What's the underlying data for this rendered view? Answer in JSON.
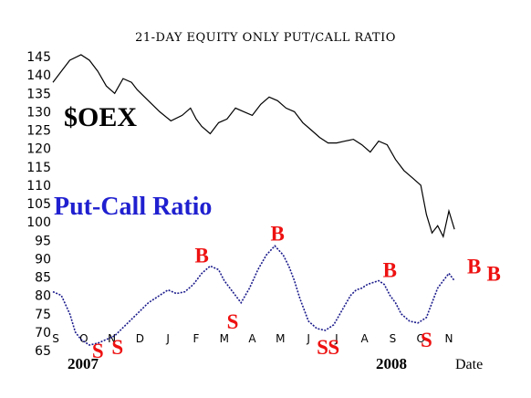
{
  "chart_data": {
    "type": "line",
    "title": "21-DAY EQUITY ONLY PUT/CALL RATIO",
    "xlabel": "Date",
    "y_ticks": [
      145,
      140,
      135,
      130,
      125,
      120,
      115,
      110,
      105,
      100,
      95,
      90,
      85,
      80,
      75,
      70,
      65
    ],
    "ylim": [
      65,
      145
    ],
    "months": [
      "S",
      "O",
      "N",
      "D",
      "J",
      "F",
      "M",
      "A",
      "M",
      "J",
      "J",
      "A",
      "S",
      "O",
      "N"
    ],
    "years": [
      "2007",
      "2008"
    ],
    "series": [
      {
        "name": "$OEX",
        "color": "#000000",
        "x": [
          0.0,
          0.3,
          0.6,
          1.0,
          1.3,
          1.6,
          1.9,
          2.2,
          2.5,
          2.8,
          3.0,
          3.4,
          3.8,
          4.2,
          4.6,
          4.9,
          5.1,
          5.3,
          5.6,
          5.9,
          6.2,
          6.5,
          6.8,
          7.1,
          7.4,
          7.7,
          8.0,
          8.3,
          8.6,
          8.9,
          9.2,
          9.5,
          9.8,
          10.1,
          10.4,
          10.7,
          11.0,
          11.3,
          11.6,
          11.9,
          12.2,
          12.5,
          12.8,
          13.1,
          13.3,
          13.5,
          13.7,
          13.9,
          14.1,
          14.3
        ],
        "values": [
          138,
          141,
          144,
          145.5,
          144,
          141,
          137,
          135,
          139,
          138,
          136,
          133,
          130,
          127.5,
          129,
          131,
          128,
          126,
          124,
          127,
          128,
          131,
          130,
          129,
          132,
          134,
          133,
          131,
          130,
          127,
          125,
          123,
          121.5,
          121.5,
          122,
          122.5,
          121,
          119,
          122,
          121,
          117,
          114,
          112,
          110,
          102,
          97,
          99,
          96,
          103,
          98
        ]
      },
      {
        "name": "Put-Call Ratio",
        "color": "#1a1a8c",
        "x": [
          0.0,
          0.3,
          0.6,
          0.8,
          1.0,
          1.3,
          1.6,
          1.9,
          2.2,
          2.6,
          3.0,
          3.4,
          3.8,
          4.1,
          4.4,
          4.7,
          5.0,
          5.3,
          5.6,
          5.9,
          6.1,
          6.4,
          6.7,
          7.0,
          7.3,
          7.6,
          7.9,
          8.2,
          8.4,
          8.6,
          8.8,
          9.1,
          9.4,
          9.7,
          10.0,
          10.3,
          10.6,
          10.8,
          11.0,
          11.2,
          11.4,
          11.6,
          11.8,
          12.0,
          12.2,
          12.4,
          12.7,
          13.0,
          13.3,
          13.5,
          13.7,
          13.9,
          14.1,
          14.3
        ],
        "values": [
          81,
          80,
          75,
          70,
          68,
          66.5,
          67,
          68,
          69,
          72,
          75,
          78,
          80,
          81.5,
          80.5,
          81,
          83,
          86,
          88,
          87,
          84,
          81,
          78,
          82,
          87,
          91,
          93.5,
          91,
          88,
          84,
          79,
          73,
          71,
          70.5,
          72,
          76,
          80,
          81.5,
          82,
          83,
          83.5,
          84,
          83,
          80,
          78,
          75,
          73,
          72.5,
          74,
          78,
          82,
          84,
          86,
          84
        ]
      }
    ],
    "annotations": {
      "oex_label": "$OEX",
      "pcr_label": "Put-Call Ratio",
      "signals": [
        {
          "label": "S",
          "x": 1.6,
          "y": 63
        },
        {
          "label": "S",
          "x": 2.3,
          "y": 64
        },
        {
          "label": "B",
          "x": 5.3,
          "y": 89
        },
        {
          "label": "S",
          "x": 6.4,
          "y": 71
        },
        {
          "label": "B",
          "x": 8.0,
          "y": 95
        },
        {
          "label": "S",
          "x": 9.6,
          "y": 64
        },
        {
          "label": "S",
          "x": 10.0,
          "y": 64
        },
        {
          "label": "B",
          "x": 12.0,
          "y": 85
        },
        {
          "label": "S",
          "x": 13.3,
          "y": 66
        },
        {
          "label": "B",
          "x": 15.0,
          "y": 86
        },
        {
          "label": "B",
          "x": 15.7,
          "y": 84
        }
      ]
    }
  }
}
